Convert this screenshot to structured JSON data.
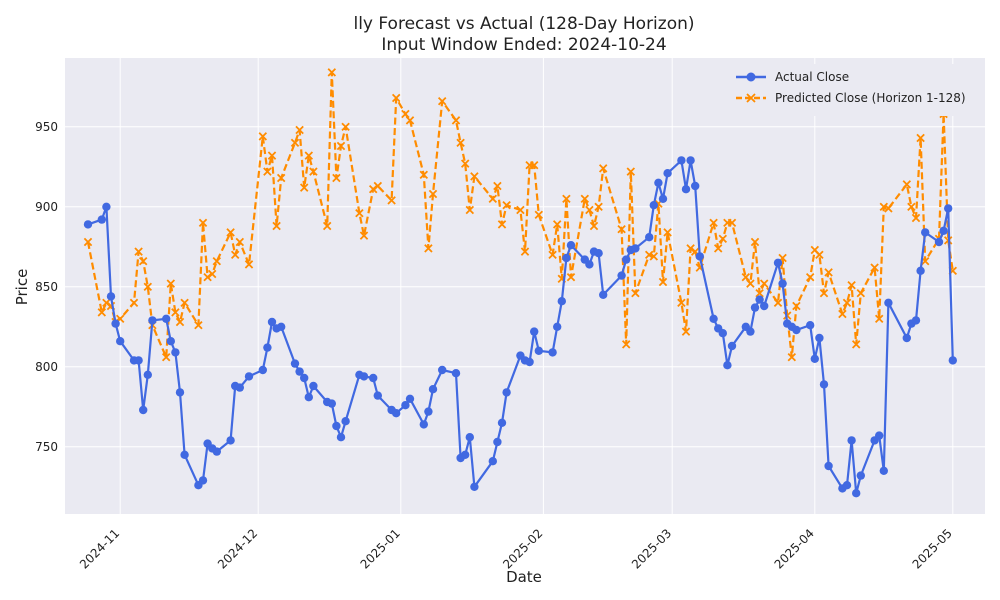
{
  "chart_data": {
    "type": "line",
    "title": "lly Forecast vs Actual (128-Day Horizon)",
    "subtitle": "Input Window Ended: 2024-10-24",
    "xlabel": "Date",
    "ylabel": "Price",
    "xlim": [
      "2024-10-20",
      "2025-05-08"
    ],
    "ylim": [
      708,
      993
    ],
    "x_ticks": [
      "2024-11-01",
      "2024-12-01",
      "2025-01-01",
      "2025-02-01",
      "2025-03-01",
      "2025-04-01",
      "2025-05-01"
    ],
    "x_tick_labels": [
      "2024-11",
      "2024-12",
      "2025-01",
      "2025-02",
      "2025-03",
      "2025-04",
      "2025-05"
    ],
    "y_ticks": [
      750,
      800,
      850,
      900,
      950
    ],
    "grid": true,
    "legend_position": "top-right",
    "series": [
      {
        "name": "Actual Close",
        "color": "#4169e1",
        "marker": "circle",
        "linestyle": "solid",
        "points": [
          [
            "2024-10-25",
            889
          ],
          [
            "2024-10-28",
            892
          ],
          [
            "2024-10-29",
            900
          ],
          [
            "2024-10-30",
            844
          ],
          [
            "2024-10-31",
            827
          ],
          [
            "2024-11-01",
            816
          ],
          [
            "2024-11-04",
            804
          ],
          [
            "2024-11-05",
            804
          ],
          [
            "2024-11-06",
            773
          ],
          [
            "2024-11-07",
            795
          ],
          [
            "2024-11-08",
            829
          ],
          [
            "2024-11-11",
            830
          ],
          [
            "2024-11-12",
            816
          ],
          [
            "2024-11-13",
            809
          ],
          [
            "2024-11-14",
            784
          ],
          [
            "2024-11-15",
            745
          ],
          [
            "2024-11-18",
            726
          ],
          [
            "2024-11-19",
            729
          ],
          [
            "2024-11-20",
            752
          ],
          [
            "2024-11-21",
            749
          ],
          [
            "2024-11-22",
            747
          ],
          [
            "2024-11-25",
            754
          ],
          [
            "2024-11-26",
            788
          ],
          [
            "2024-11-27",
            787
          ],
          [
            "2024-11-29",
            794
          ],
          [
            "2024-12-02",
            798
          ],
          [
            "2024-12-03",
            812
          ],
          [
            "2024-12-04",
            828
          ],
          [
            "2024-12-05",
            824
          ],
          [
            "2024-12-06",
            825
          ],
          [
            "2024-12-09",
            802
          ],
          [
            "2024-12-10",
            797
          ],
          [
            "2024-12-11",
            793
          ],
          [
            "2024-12-12",
            781
          ],
          [
            "2024-12-13",
            788
          ],
          [
            "2024-12-16",
            778
          ],
          [
            "2024-12-17",
            777
          ],
          [
            "2024-12-18",
            763
          ],
          [
            "2024-12-19",
            756
          ],
          [
            "2024-12-20",
            766
          ],
          [
            "2024-12-23",
            795
          ],
          [
            "2024-12-24",
            794
          ],
          [
            "2024-12-26",
            793
          ],
          [
            "2024-12-27",
            782
          ],
          [
            "2024-12-30",
            773
          ],
          [
            "2024-12-31",
            771
          ],
          [
            "2025-01-02",
            776
          ],
          [
            "2025-01-03",
            780
          ],
          [
            "2025-01-06",
            764
          ],
          [
            "2025-01-07",
            772
          ],
          [
            "2025-01-08",
            786
          ],
          [
            "2025-01-10",
            798
          ],
          [
            "2025-01-13",
            796
          ],
          [
            "2025-01-14",
            743
          ],
          [
            "2025-01-15",
            745
          ],
          [
            "2025-01-16",
            756
          ],
          [
            "2025-01-17",
            725
          ],
          [
            "2025-01-21",
            741
          ],
          [
            "2025-01-22",
            753
          ],
          [
            "2025-01-23",
            765
          ],
          [
            "2025-01-24",
            784
          ],
          [
            "2025-01-27",
            807
          ],
          [
            "2025-01-28",
            804
          ],
          [
            "2025-01-29",
            803
          ],
          [
            "2025-01-30",
            822
          ],
          [
            "2025-01-31",
            810
          ],
          [
            "2025-02-03",
            809
          ],
          [
            "2025-02-04",
            825
          ],
          [
            "2025-02-05",
            841
          ],
          [
            "2025-02-06",
            868
          ],
          [
            "2025-02-07",
            876
          ],
          [
            "2025-02-10",
            867
          ],
          [
            "2025-02-11",
            864
          ],
          [
            "2025-02-12",
            872
          ],
          [
            "2025-02-13",
            871
          ],
          [
            "2025-02-14",
            845
          ],
          [
            "2025-02-18",
            857
          ],
          [
            "2025-02-19",
            867
          ],
          [
            "2025-02-20",
            873
          ],
          [
            "2025-02-21",
            874
          ],
          [
            "2025-02-24",
            881
          ],
          [
            "2025-02-25",
            901
          ],
          [
            "2025-02-26",
            915
          ],
          [
            "2025-02-27",
            905
          ],
          [
            "2025-02-28",
            921
          ],
          [
            "2025-03-03",
            929
          ],
          [
            "2025-03-04",
            911
          ],
          [
            "2025-03-05",
            929
          ],
          [
            "2025-03-06",
            913
          ],
          [
            "2025-03-07",
            869
          ],
          [
            "2025-03-10",
            830
          ],
          [
            "2025-03-11",
            824
          ],
          [
            "2025-03-12",
            821
          ],
          [
            "2025-03-13",
            801
          ],
          [
            "2025-03-14",
            813
          ],
          [
            "2025-03-17",
            825
          ],
          [
            "2025-03-18",
            822
          ],
          [
            "2025-03-19",
            837
          ],
          [
            "2025-03-20",
            842
          ],
          [
            "2025-03-21",
            838
          ],
          [
            "2025-03-24",
            865
          ],
          [
            "2025-03-25",
            852
          ],
          [
            "2025-03-26",
            827
          ],
          [
            "2025-03-27",
            825
          ],
          [
            "2025-03-28",
            823
          ],
          [
            "2025-03-31",
            826
          ],
          [
            "2025-04-01",
            805
          ],
          [
            "2025-04-02",
            818
          ],
          [
            "2025-04-03",
            789
          ],
          [
            "2025-04-04",
            738
          ],
          [
            "2025-04-07",
            724
          ],
          [
            "2025-04-08",
            726
          ],
          [
            "2025-04-09",
            754
          ],
          [
            "2025-04-10",
            721
          ],
          [
            "2025-04-11",
            732
          ],
          [
            "2025-04-14",
            754
          ],
          [
            "2025-04-15",
            757
          ],
          [
            "2025-04-16",
            735
          ],
          [
            "2025-04-17",
            840
          ],
          [
            "2025-04-21",
            818
          ],
          [
            "2025-04-22",
            827
          ],
          [
            "2025-04-23",
            829
          ],
          [
            "2025-04-24",
            860
          ],
          [
            "2025-04-25",
            884
          ],
          [
            "2025-04-28",
            878
          ],
          [
            "2025-04-29",
            885
          ],
          [
            "2025-04-30",
            899
          ],
          [
            "2025-05-01",
            804
          ]
        ]
      },
      {
        "name": "Predicted Close (Horizon 1-128)",
        "color": "#ff8c00",
        "marker": "x",
        "linestyle": "dashed",
        "points": [
          [
            "2024-10-25",
            878
          ],
          [
            "2024-10-28",
            834
          ],
          [
            "2024-10-29",
            840
          ],
          [
            "2024-10-30",
            838
          ],
          [
            "2024-10-31",
            828
          ],
          [
            "2024-11-01",
            830
          ],
          [
            "2024-11-04",
            840
          ],
          [
            "2024-11-05",
            872
          ],
          [
            "2024-11-06",
            866
          ],
          [
            "2024-11-07",
            850
          ],
          [
            "2024-11-08",
            826
          ],
          [
            "2024-11-11",
            806
          ],
          [
            "2024-11-12",
            852
          ],
          [
            "2024-11-13",
            834
          ],
          [
            "2024-11-14",
            828
          ],
          [
            "2024-11-15",
            840
          ],
          [
            "2024-11-18",
            826
          ],
          [
            "2024-11-19",
            890
          ],
          [
            "2024-11-20",
            856
          ],
          [
            "2024-11-21",
            858
          ],
          [
            "2024-11-22",
            866
          ],
          [
            "2024-11-25",
            884
          ],
          [
            "2024-11-26",
            870
          ],
          [
            "2024-11-27",
            878
          ],
          [
            "2024-11-29",
            864
          ],
          [
            "2024-12-02",
            944
          ],
          [
            "2024-12-03",
            922
          ],
          [
            "2024-12-04",
            932
          ],
          [
            "2024-12-05",
            888
          ],
          [
            "2024-12-06",
            918
          ],
          [
            "2024-12-09",
            940
          ],
          [
            "2024-12-10",
            948
          ],
          [
            "2024-12-11",
            912
          ],
          [
            "2024-12-12",
            932
          ],
          [
            "2024-12-13",
            922
          ],
          [
            "2024-12-16",
            888
          ],
          [
            "2024-12-17",
            984
          ],
          [
            "2024-12-18",
            918
          ],
          [
            "2024-12-19",
            938
          ],
          [
            "2024-12-20",
            950
          ],
          [
            "2024-12-23",
            896
          ],
          [
            "2024-12-24",
            882
          ],
          [
            "2024-12-26",
            911
          ],
          [
            "2024-12-27",
            913
          ],
          [
            "2024-12-30",
            904
          ],
          [
            "2024-12-31",
            968
          ],
          [
            "2025-01-02",
            958
          ],
          [
            "2025-01-03",
            954
          ],
          [
            "2025-01-06",
            920
          ],
          [
            "2025-01-07",
            874
          ],
          [
            "2025-01-08",
            908
          ],
          [
            "2025-01-10",
            966
          ],
          [
            "2025-01-13",
            954
          ],
          [
            "2025-01-14",
            940
          ],
          [
            "2025-01-15",
            927
          ],
          [
            "2025-01-16",
            898
          ],
          [
            "2025-01-17",
            919
          ],
          [
            "2025-01-21",
            905
          ],
          [
            "2025-01-22",
            913
          ],
          [
            "2025-01-23",
            889
          ],
          [
            "2025-01-24",
            901
          ],
          [
            "2025-01-27",
            898
          ],
          [
            "2025-01-28",
            872
          ],
          [
            "2025-01-29",
            926
          ],
          [
            "2025-01-30",
            926
          ],
          [
            "2025-01-31",
            895
          ],
          [
            "2025-02-03",
            870
          ],
          [
            "2025-02-04",
            889
          ],
          [
            "2025-02-05",
            855
          ],
          [
            "2025-02-06",
            905
          ],
          [
            "2025-02-07",
            856
          ],
          [
            "2025-02-10",
            905
          ],
          [
            "2025-02-11",
            898
          ],
          [
            "2025-02-12",
            888
          ],
          [
            "2025-02-13",
            900
          ],
          [
            "2025-02-14",
            924
          ],
          [
            "2025-02-18",
            886
          ],
          [
            "2025-02-19",
            814
          ],
          [
            "2025-02-20",
            922
          ],
          [
            "2025-02-21",
            846
          ],
          [
            "2025-02-24",
            870
          ],
          [
            "2025-02-25",
            869
          ],
          [
            "2025-02-26",
            902
          ],
          [
            "2025-02-27",
            853
          ],
          [
            "2025-02-28",
            884
          ],
          [
            "2025-03-03",
            840
          ],
          [
            "2025-03-04",
            822
          ],
          [
            "2025-03-05",
            874
          ],
          [
            "2025-03-06",
            872
          ],
          [
            "2025-03-07",
            862
          ],
          [
            "2025-03-10",
            890
          ],
          [
            "2025-03-11",
            874
          ],
          [
            "2025-03-12",
            880
          ],
          [
            "2025-03-13",
            890
          ],
          [
            "2025-03-14",
            890
          ],
          [
            "2025-03-17",
            856
          ],
          [
            "2025-03-18",
            852
          ],
          [
            "2025-03-19",
            878
          ],
          [
            "2025-03-20",
            846
          ],
          [
            "2025-03-21",
            852
          ],
          [
            "2025-03-24",
            840
          ],
          [
            "2025-03-25",
            868
          ],
          [
            "2025-03-26",
            832
          ],
          [
            "2025-03-27",
            806
          ],
          [
            "2025-03-28",
            838
          ],
          [
            "2025-03-31",
            856
          ],
          [
            "2025-04-01",
            873
          ],
          [
            "2025-04-02",
            870
          ],
          [
            "2025-04-03",
            846
          ],
          [
            "2025-04-04",
            859
          ],
          [
            "2025-04-07",
            833
          ],
          [
            "2025-04-08",
            840
          ],
          [
            "2025-04-09",
            851
          ],
          [
            "2025-04-10",
            814
          ],
          [
            "2025-04-11",
            846
          ],
          [
            "2025-04-14",
            862
          ],
          [
            "2025-04-15",
            830
          ],
          [
            "2025-04-16",
            900
          ],
          [
            "2025-04-17",
            899
          ],
          [
            "2025-04-21",
            914
          ],
          [
            "2025-04-22",
            900
          ],
          [
            "2025-04-23",
            893
          ],
          [
            "2025-04-24",
            943
          ],
          [
            "2025-04-25",
            866
          ],
          [
            "2025-04-28",
            880
          ],
          [
            "2025-04-29",
            958
          ],
          [
            "2025-04-30",
            879
          ],
          [
            "2025-05-01",
            860
          ]
        ]
      }
    ]
  }
}
